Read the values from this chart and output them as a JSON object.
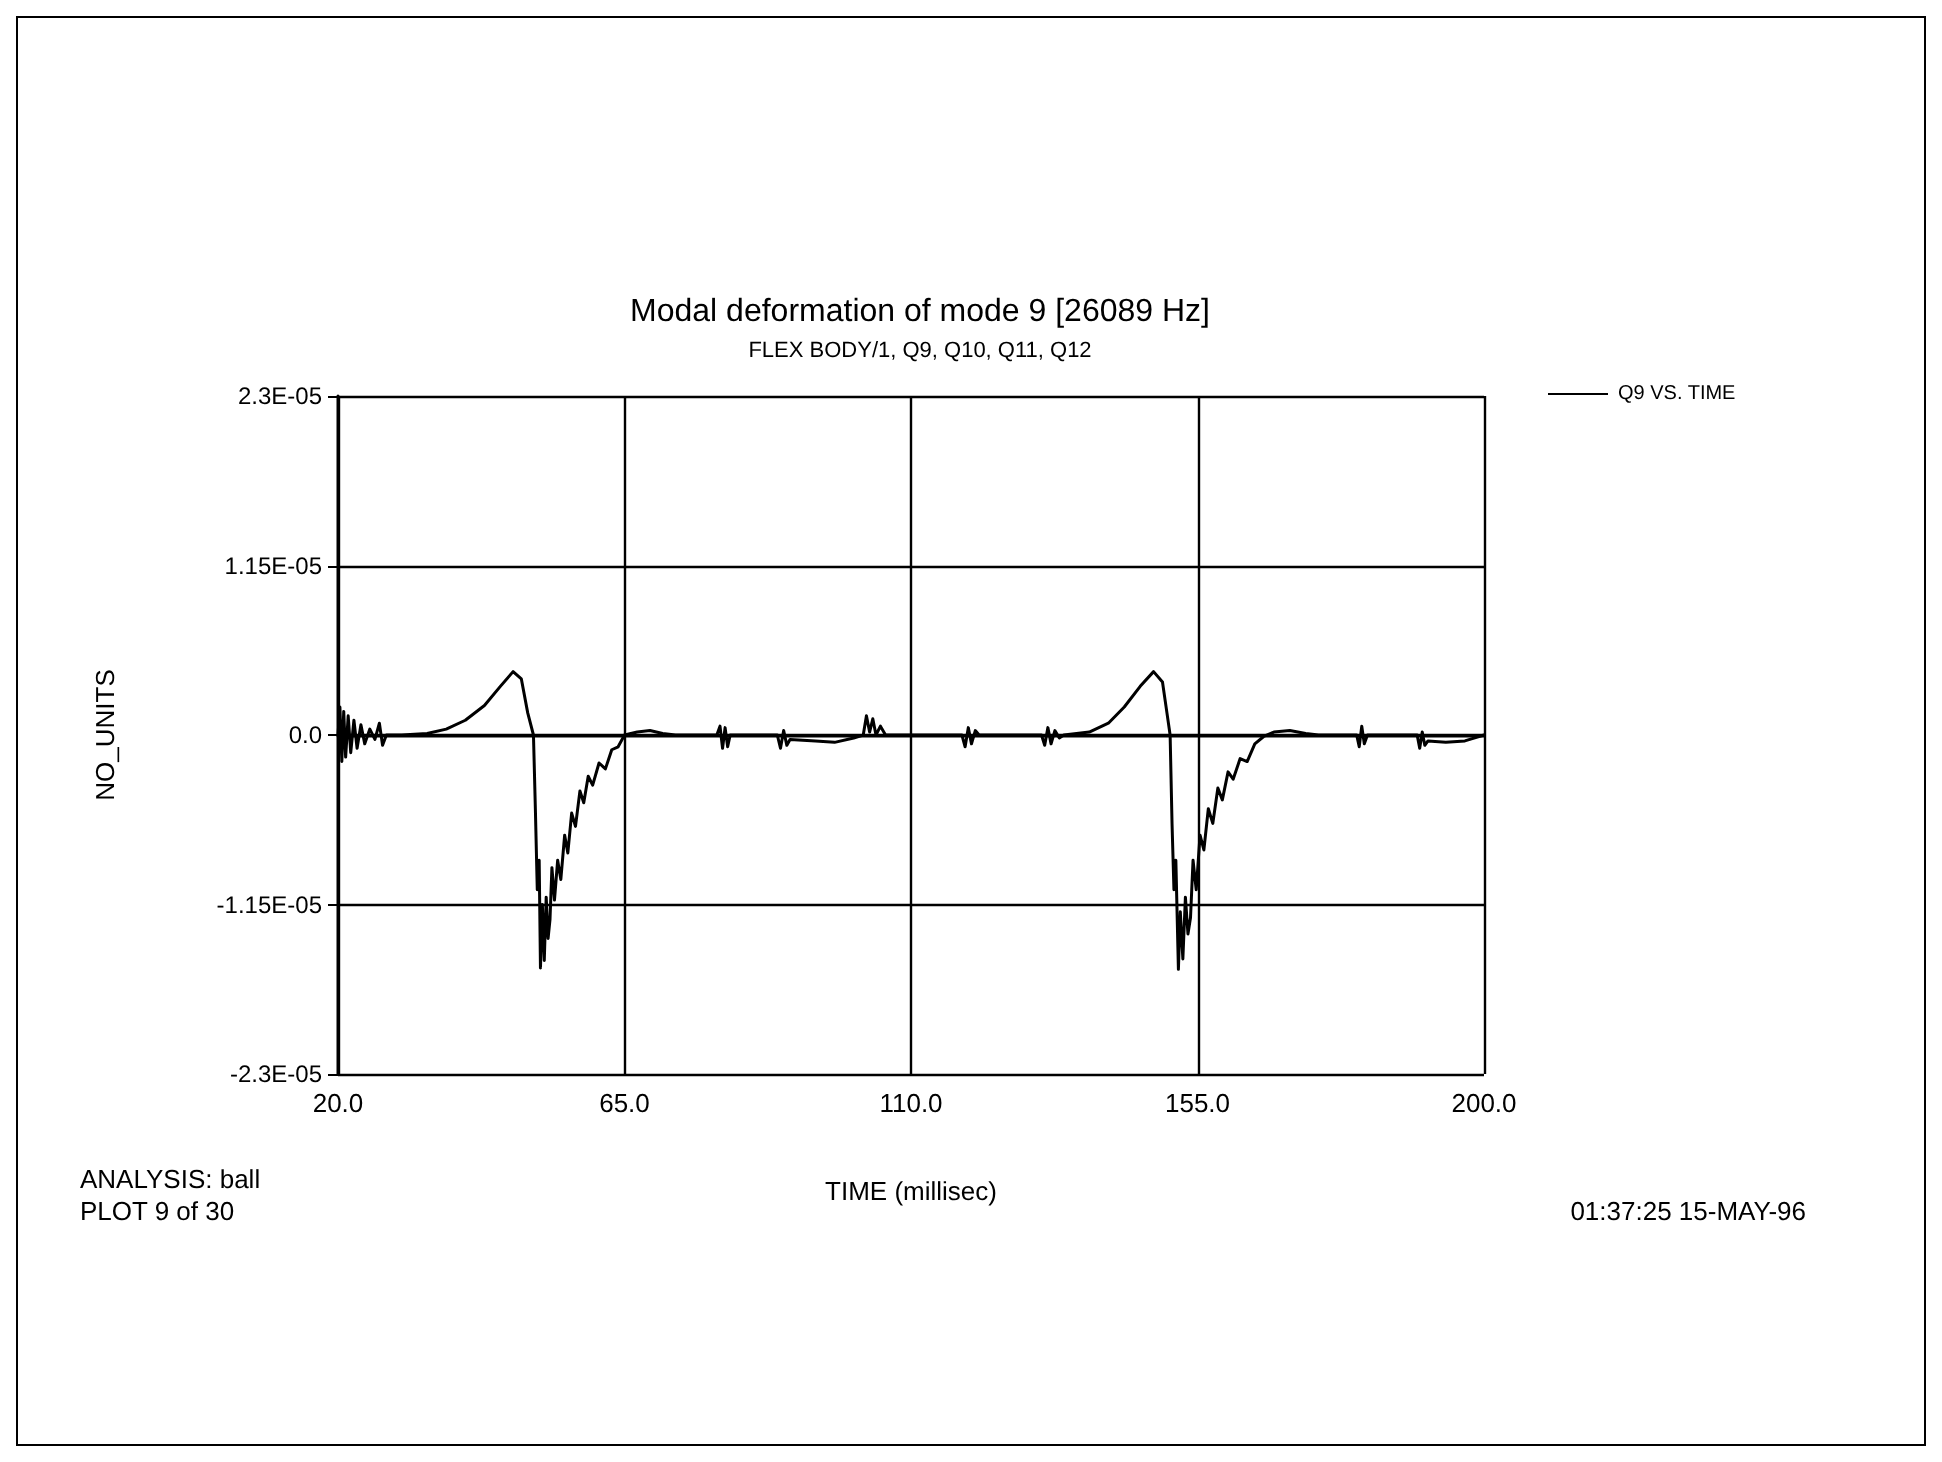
{
  "chart_data": {
    "type": "line",
    "title": "Modal deformation of mode 9 [26089 Hz]",
    "subtitle": "FLEX BODY/1, Q9, Q10, Q11, Q12",
    "xlabel": "TIME (millisec)",
    "ylabel": "NO_UNITS",
    "annotations": [
      "ANALYSIS: ball",
      "PLOT 9 of 30",
      "01:37:25 15-MAY-96"
    ],
    "xlim": [
      20,
      200
    ],
    "xticks": [
      {
        "value": 20,
        "label": "20.0"
      },
      {
        "value": 65,
        "label": "65.0"
      },
      {
        "value": 110,
        "label": "110.0"
      },
      {
        "value": 155,
        "label": "155.0"
      },
      {
        "value": 200,
        "label": "200.0"
      }
    ],
    "ylim": [
      -2.3e-05,
      2.3e-05
    ],
    "yticks": [
      {
        "value": -2.3e-05,
        "label": "-2.3E-05"
      },
      {
        "value": -1.15e-05,
        "label": "-1.15E-05"
      },
      {
        "value": 0,
        "label": "0.0"
      },
      {
        "value": 1.15e-05,
        "label": "1.15E-05"
      },
      {
        "value": 2.3e-05,
        "label": "2.3E-05"
      }
    ],
    "grid": true,
    "legend": "top right",
    "marker": "none",
    "line_style": "solid",
    "series": [
      {
        "name": "Q9 VS. TIME",
        "color": "#000000",
        "x": [
          20,
          20.3,
          20.6,
          20.9,
          21.2,
          21.6,
          22,
          22.5,
          23,
          23.6,
          24.2,
          25,
          25.8,
          26.5,
          27,
          27.6,
          30,
          34,
          37,
          40,
          43,
          45.5,
          47.5,
          48.8,
          49.8,
          50.7,
          51,
          51.3,
          51.6,
          51.8,
          52.1,
          52.4,
          52.7,
          53,
          53.3,
          53.6,
          54,
          54.5,
          55,
          55.6,
          56.1,
          56.7,
          57.3,
          58,
          58.6,
          59.3,
          60,
          61,
          62,
          63,
          64,
          65,
          67,
          69,
          71,
          73,
          79.5,
          80,
          80.4,
          80.8,
          81.2,
          81.6,
          89,
          89.5,
          90,
          90.5,
          91,
          95,
          98,
          101,
          102.5,
          103,
          103.5,
          104,
          104.5,
          105.2,
          106,
          118,
          118.5,
          119,
          119.5,
          120.1,
          120.7,
          130.5,
          131,
          131.5,
          132,
          132.6,
          133.3,
          134,
          138,
          141,
          143.5,
          146,
          148.1,
          149.5,
          150.2,
          150.7,
          151,
          151.3,
          151.6,
          152,
          152.3,
          152.7,
          153.1,
          153.5,
          153.9,
          154.3,
          154.8,
          155.4,
          156,
          156.7,
          157.4,
          158.2,
          158.9,
          159.8,
          160.6,
          161.7,
          162.8,
          164,
          165.4,
          167,
          169.5,
          172,
          174,
          180,
          180.4,
          180.8,
          181.2,
          181.7,
          189.5,
          189.9,
          190.3,
          190.7,
          191.2,
          194,
          197,
          200
        ],
        "values": [
          0,
          1.9e-06,
          -1.8e-06,
          1.6e-06,
          -1.5e-06,
          1.3e-06,
          -1.2e-06,
          1e-06,
          -9e-07,
          7e-07,
          -6e-07,
          4e-07,
          -3e-07,
          8e-07,
          -7e-07,
          0,
          0,
          1e-07,
          4e-07,
          1e-06,
          2e-06,
          3.3e-06,
          4.3e-06,
          3.8e-06,
          1.5e-06,
          0,
          -5e-06,
          -1.05e-05,
          -8.5e-06,
          -1.58e-05,
          -1.15e-05,
          -1.53e-05,
          -1.1e-05,
          -1.38e-05,
          -1.25e-05,
          -9e-06,
          -1.12e-05,
          -8.5e-06,
          -9.8e-06,
          -6.8e-06,
          -8e-06,
          -5.3e-06,
          -6.2e-06,
          -3.8e-06,
          -4.6e-06,
          -2.8e-06,
          -3.4e-06,
          -1.9e-06,
          -2.3e-06,
          -1e-06,
          -8e-07,
          0,
          2e-07,
          3e-07,
          1e-07,
          0,
          0,
          6e-07,
          -9e-07,
          5e-07,
          -8e-07,
          0,
          0,
          -9e-07,
          3e-07,
          -7e-07,
          -3e-07,
          -4e-07,
          -5e-07,
          -2e-07,
          0,
          1.3e-06,
          2e-07,
          1.1e-06,
          0,
          6e-07,
          0,
          0,
          -8e-07,
          5e-07,
          -6e-07,
          3e-07,
          0,
          0,
          -7e-07,
          5e-07,
          -6e-07,
          3e-07,
          -2e-07,
          0,
          2e-07,
          8e-07,
          1.9e-06,
          3.3e-06,
          4.3e-06,
          3.6e-06,
          1.5e-06,
          0,
          -6e-06,
          -1.05e-05,
          -8.5e-06,
          -1.59e-05,
          -1.2e-05,
          -1.52e-05,
          -1.1e-05,
          -1.35e-05,
          -1.24e-05,
          -8.5e-06,
          -1.05e-05,
          -6.8e-06,
          -7.8e-06,
          -5e-06,
          -6e-06,
          -3.6e-06,
          -4.4e-06,
          -2.5e-06,
          -3e-06,
          -1.6e-06,
          -1.8e-06,
          -6e-07,
          -1e-07,
          2e-07,
          3e-07,
          1e-07,
          0,
          0,
          -8e-07,
          6e-07,
          -6e-07,
          0,
          0,
          -9e-07,
          2e-07,
          -7e-07,
          -4e-07,
          -5e-07,
          -4e-07,
          0
        ]
      }
    ]
  }
}
